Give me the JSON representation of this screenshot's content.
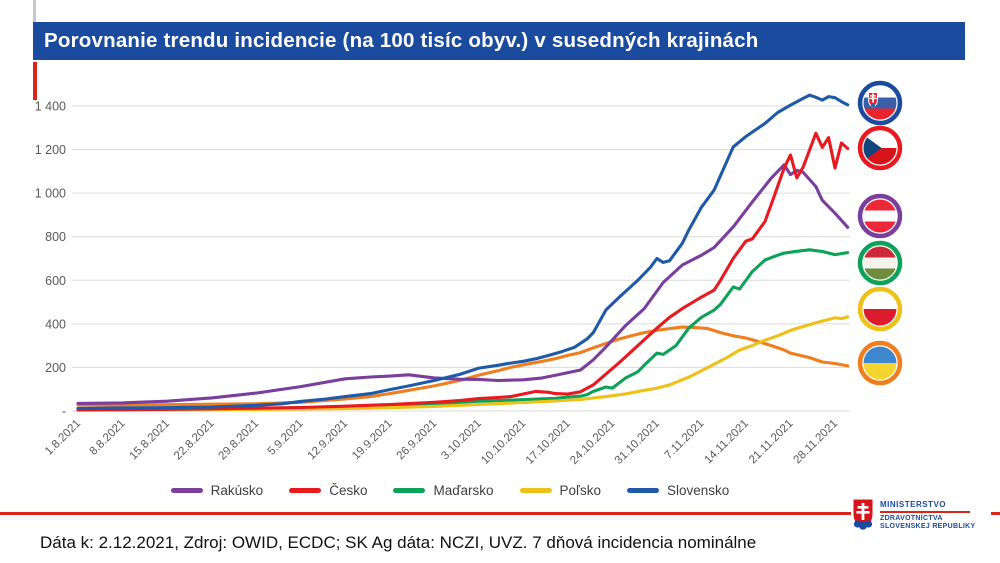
{
  "title": "Porovnanie trendu incidencie (na 100 tisíc obyv.) v susedných krajinách",
  "footer": {
    "note": "Dáta k: 2.12.2021, Zdroj: OWID, ECDC; SK Ag dáta: NCZI, UVZ. 7 dňová incidencia nominálne"
  },
  "logo": {
    "line1": "MINISTERSTVO",
    "line2": "ZDRAVOTNÍCTVA",
    "line3": "SLOVENSKEJ REPUBLIKY"
  },
  "colors": {
    "title_bar_blue": "#1B4B9E",
    "accent_red": "#D9261C",
    "grid": "#DBDBDB",
    "axis_text": "#595959"
  },
  "flags": [
    {
      "name": "flag-slovakia",
      "country": "Slovensko",
      "ring": "#1B4B9E",
      "pattern": "sk"
    },
    {
      "name": "flag-czechia",
      "country": "Česko",
      "ring": "#E8191F",
      "pattern": "cz"
    },
    {
      "name": "flag-austria",
      "country": "Rakúsko",
      "ring": "#7A3E9D",
      "pattern": "at"
    },
    {
      "name": "flag-hungary",
      "country": "Maďarsko",
      "ring": "#0CA257",
      "pattern": "hu"
    },
    {
      "name": "flag-poland",
      "country": "Poľsko",
      "ring": "#EEC118",
      "pattern": "pl"
    },
    {
      "name": "flag-ukraine",
      "country": "Ukrajina",
      "ring": "#F07D1E",
      "pattern": "ua"
    }
  ],
  "chart_data": {
    "type": "line",
    "title": "",
    "xlabel": "",
    "ylabel": "",
    "grid": true,
    "legend_position": "bottom",
    "ylim": [
      0,
      1400
    ],
    "yticks": [
      0,
      200,
      400,
      600,
      800,
      1000,
      1200,
      1400
    ],
    "ytick_labels": [
      "-",
      "200",
      "400",
      "600",
      "800",
      "1 000",
      "1 200",
      "1 400"
    ],
    "x_unit": "days since 1.8.2021, weekly ticks",
    "x_tick_labels": [
      "1.8.2021",
      "8.8.2021",
      "15.8.2021",
      "22.8.2021",
      "29.8.2021",
      "5.9.2021",
      "12.9.2021",
      "19.9.2021",
      "26.9.2021",
      "3.10.2021",
      "10.10.2021",
      "17.10.2021",
      "24.10.2021",
      "31.10.2021",
      "7.11.2021",
      "14.11.2021",
      "21.11.2021",
      "28.11.2021"
    ],
    "legend": [
      "Rakúsko",
      "Česko",
      "Maďarsko",
      "Poľsko",
      "Slovensko"
    ],
    "series": [
      {
        "name": "Ukrajina",
        "color": "#F07D1E",
        "in_legend": false,
        "points": [
          [
            0,
            28
          ],
          [
            7,
            28
          ],
          [
            14,
            29
          ],
          [
            21,
            31
          ],
          [
            28,
            33
          ],
          [
            35,
            40
          ],
          [
            42,
            55
          ],
          [
            46,
            66
          ],
          [
            49,
            80
          ],
          [
            52,
            95
          ],
          [
            56,
            115
          ],
          [
            60,
            140
          ],
          [
            63,
            165
          ],
          [
            66,
            185
          ],
          [
            68,
            200
          ],
          [
            70,
            212
          ],
          [
            73,
            228
          ],
          [
            75,
            240
          ],
          [
            77,
            255
          ],
          [
            79,
            268
          ],
          [
            81,
            290
          ],
          [
            83,
            310
          ],
          [
            85,
            330
          ],
          [
            87,
            345
          ],
          [
            89,
            360
          ],
          [
            91,
            370
          ],
          [
            93,
            378
          ],
          [
            95,
            385
          ],
          [
            97,
            383
          ],
          [
            99,
            378
          ],
          [
            101,
            360
          ],
          [
            103,
            345
          ],
          [
            105,
            335
          ],
          [
            107,
            318
          ],
          [
            109,
            300
          ],
          [
            111,
            280
          ],
          [
            112,
            266
          ],
          [
            114,
            252
          ],
          [
            115,
            245
          ],
          [
            117,
            225
          ],
          [
            119,
            218
          ],
          [
            121,
            207
          ]
        ]
      },
      {
        "name": "Rakúsko",
        "color": "#7A3E9D",
        "in_legend": true,
        "points": [
          [
            0,
            35
          ],
          [
            7,
            37
          ],
          [
            14,
            45
          ],
          [
            21,
            60
          ],
          [
            28,
            82
          ],
          [
            35,
            112
          ],
          [
            42,
            148
          ],
          [
            46,
            156
          ],
          [
            49,
            160
          ],
          [
            52,
            166
          ],
          [
            56,
            152
          ],
          [
            60,
            146
          ],
          [
            63,
            145
          ],
          [
            66,
            140
          ],
          [
            70,
            143
          ],
          [
            73,
            152
          ],
          [
            76,
            170
          ],
          [
            79,
            188
          ],
          [
            81,
            235
          ],
          [
            83,
            294
          ],
          [
            86,
            390
          ],
          [
            89,
            470
          ],
          [
            92,
            590
          ],
          [
            95,
            670
          ],
          [
            98,
            715
          ],
          [
            100,
            750
          ],
          [
            103,
            845
          ],
          [
            106,
            960
          ],
          [
            109,
            1070
          ],
          [
            111,
            1130
          ],
          [
            112,
            1085
          ],
          [
            113,
            1105
          ],
          [
            114,
            1095
          ],
          [
            116,
            1030
          ],
          [
            117,
            967
          ],
          [
            119,
            908
          ],
          [
            121,
            843
          ]
        ]
      },
      {
        "name": "Maďarsko",
        "color": "#0CA257",
        "in_legend": true,
        "points": [
          [
            0,
            8
          ],
          [
            7,
            9
          ],
          [
            14,
            10
          ],
          [
            21,
            11
          ],
          [
            28,
            12
          ],
          [
            35,
            15
          ],
          [
            42,
            18
          ],
          [
            49,
            25
          ],
          [
            56,
            33
          ],
          [
            63,
            45
          ],
          [
            68,
            50
          ],
          [
            70,
            52
          ],
          [
            73,
            56
          ],
          [
            75,
            58
          ],
          [
            77,
            64
          ],
          [
            79,
            68
          ],
          [
            80,
            75
          ],
          [
            81,
            90
          ],
          [
            83,
            110
          ],
          [
            84,
            105
          ],
          [
            86,
            150
          ],
          [
            88,
            180
          ],
          [
            89,
            210
          ],
          [
            91,
            266
          ],
          [
            92,
            260
          ],
          [
            94,
            300
          ],
          [
            96,
            380
          ],
          [
            98,
            430
          ],
          [
            100,
            463
          ],
          [
            101,
            490
          ],
          [
            103,
            569
          ],
          [
            104,
            560
          ],
          [
            106,
            640
          ],
          [
            108,
            693
          ],
          [
            110,
            715
          ],
          [
            111,
            725
          ],
          [
            113,
            733
          ],
          [
            115,
            740
          ],
          [
            117,
            732
          ],
          [
            119,
            718
          ],
          [
            121,
            727
          ]
        ]
      },
      {
        "name": "Poľsko",
        "color": "#EEC118",
        "in_legend": true,
        "points": [
          [
            0,
            4
          ],
          [
            7,
            5
          ],
          [
            14,
            5
          ],
          [
            21,
            6
          ],
          [
            28,
            7
          ],
          [
            35,
            9
          ],
          [
            42,
            11
          ],
          [
            49,
            15
          ],
          [
            56,
            21
          ],
          [
            63,
            30
          ],
          [
            70,
            39
          ],
          [
            75,
            46
          ],
          [
            79,
            53
          ],
          [
            83,
            66
          ],
          [
            86,
            78
          ],
          [
            89,
            95
          ],
          [
            91,
            105
          ],
          [
            93,
            120
          ],
          [
            96,
            155
          ],
          [
            98,
            185
          ],
          [
            100,
            215
          ],
          [
            102,
            245
          ],
          [
            104,
            280
          ],
          [
            106,
            300
          ],
          [
            108,
            325
          ],
          [
            110,
            345
          ],
          [
            112,
            370
          ],
          [
            114,
            388
          ],
          [
            116,
            405
          ],
          [
            118,
            420
          ],
          [
            119,
            428
          ],
          [
            120,
            424
          ],
          [
            121,
            432
          ]
        ]
      },
      {
        "name": "Česko",
        "color": "#E8191F",
        "in_legend": true,
        "points": [
          [
            0,
            5
          ],
          [
            7,
            6
          ],
          [
            14,
            8
          ],
          [
            21,
            10
          ],
          [
            28,
            13
          ],
          [
            35,
            16
          ],
          [
            42,
            22
          ],
          [
            49,
            30
          ],
          [
            56,
            40
          ],
          [
            60,
            48
          ],
          [
            63,
            57
          ],
          [
            66,
            62
          ],
          [
            68,
            66
          ],
          [
            70,
            78
          ],
          [
            72,
            90
          ],
          [
            74,
            86
          ],
          [
            75,
            80
          ],
          [
            77,
            78
          ],
          [
            79,
            88
          ],
          [
            81,
            120
          ],
          [
            83,
            170
          ],
          [
            85,
            220
          ],
          [
            88,
            300
          ],
          [
            91,
            380
          ],
          [
            93,
            430
          ],
          [
            95,
            470
          ],
          [
            98,
            523
          ],
          [
            100,
            555
          ],
          [
            101,
            600
          ],
          [
            103,
            700
          ],
          [
            105,
            780
          ],
          [
            106,
            790
          ],
          [
            108,
            870
          ],
          [
            109,
            950
          ],
          [
            111,
            1115
          ],
          [
            112,
            1175
          ],
          [
            113,
            1070
          ],
          [
            114,
            1120
          ],
          [
            116,
            1275
          ],
          [
            117,
            1210
          ],
          [
            118,
            1255
          ],
          [
            119,
            1115
          ],
          [
            120,
            1230
          ],
          [
            121,
            1205
          ]
        ]
      },
      {
        "name": "Slovensko",
        "color": "#1F5AA8",
        "in_legend": true,
        "points": [
          [
            0,
            12
          ],
          [
            7,
            14
          ],
          [
            14,
            15
          ],
          [
            21,
            18
          ],
          [
            28,
            26
          ],
          [
            32,
            33
          ],
          [
            35,
            44
          ],
          [
            39,
            55
          ],
          [
            42,
            66
          ],
          [
            46,
            80
          ],
          [
            49,
            98
          ],
          [
            52,
            115
          ],
          [
            56,
            140
          ],
          [
            60,
            168
          ],
          [
            63,
            197
          ],
          [
            66,
            210
          ],
          [
            68,
            220
          ],
          [
            70,
            228
          ],
          [
            72,
            240
          ],
          [
            74,
            255
          ],
          [
            76,
            272
          ],
          [
            78,
            292
          ],
          [
            80,
            330
          ],
          [
            81,
            360
          ],
          [
            83,
            464
          ],
          [
            85,
            520
          ],
          [
            88,
            600
          ],
          [
            90,
            660
          ],
          [
            91,
            700
          ],
          [
            92,
            682
          ],
          [
            93,
            690
          ],
          [
            95,
            770
          ],
          [
            96,
            830
          ],
          [
            98,
            935
          ],
          [
            100,
            1014
          ],
          [
            103,
            1212
          ],
          [
            105,
            1260
          ],
          [
            108,
            1320
          ],
          [
            110,
            1370
          ],
          [
            112,
            1404
          ],
          [
            114,
            1435
          ],
          [
            115,
            1450
          ],
          [
            116,
            1440
          ],
          [
            117,
            1427
          ],
          [
            118,
            1443
          ],
          [
            119,
            1438
          ],
          [
            120,
            1420
          ],
          [
            121,
            1405
          ]
        ]
      }
    ]
  }
}
